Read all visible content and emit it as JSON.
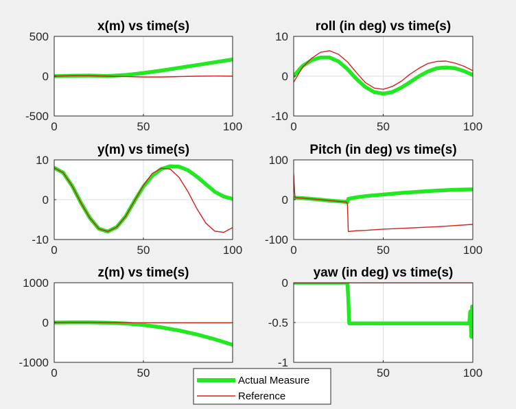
{
  "figure": {
    "background": "#f0f0f0"
  },
  "colors": {
    "actual": "#22e822",
    "reference": "#d81b1b"
  },
  "legend": {
    "actual_label": "Actual Measure",
    "reference_label": "Reference",
    "placement": "bottom-center"
  },
  "chart_data": [
    {
      "type": "line",
      "title": "x(m) vs time(s)",
      "xlim": [
        0,
        100
      ],
      "ylim": [
        -500,
        500
      ],
      "xticks": [
        0,
        50,
        100
      ],
      "xticklabels": [
        "0",
        "50",
        "100"
      ],
      "yticks": [
        -500,
        0,
        500
      ],
      "yticklabels": [
        "-500",
        "0",
        "500"
      ],
      "grid": true,
      "series": [
        {
          "name": "Actual Measure",
          "x": [
            0,
            10,
            20,
            30,
            40,
            50,
            60,
            70,
            80,
            90,
            100
          ],
          "y": [
            0,
            5,
            8,
            2,
            15,
            40,
            70,
            105,
            140,
            175,
            210
          ]
        },
        {
          "name": "Reference",
          "x": [
            0,
            10,
            20,
            30,
            40,
            50,
            60,
            70,
            80,
            90,
            100
          ],
          "y": [
            0,
            6,
            6,
            0,
            -5,
            -10,
            -10,
            -5,
            0,
            2,
            0
          ]
        }
      ]
    },
    {
      "type": "line",
      "title": "roll (in deg) vs time(s)",
      "xlim": [
        0,
        100
      ],
      "ylim": [
        -10,
        10
      ],
      "xticks": [
        0,
        50,
        100
      ],
      "xticklabels": [
        "0",
        "50",
        "100"
      ],
      "yticks": [
        -10,
        0,
        10
      ],
      "yticklabels": [
        "-10",
        "0",
        "10"
      ],
      "grid": true,
      "series": [
        {
          "name": "Actual Measure",
          "x": [
            0,
            5,
            10,
            15,
            20,
            25,
            30,
            35,
            40,
            45,
            50,
            55,
            60,
            65,
            70,
            75,
            80,
            85,
            90,
            95,
            100
          ],
          "y": [
            0,
            2.6,
            4,
            4.7,
            4.7,
            3.7,
            1.8,
            -0.7,
            -2.7,
            -4,
            -4.4,
            -4,
            -2.9,
            -1.5,
            0,
            1.2,
            2,
            2.2,
            2,
            1.3,
            0.3
          ]
        },
        {
          "name": "Reference",
          "x": [
            0,
            5,
            10,
            15,
            20,
            25,
            30,
            35,
            40,
            45,
            50,
            55,
            60,
            65,
            70,
            75,
            80,
            85,
            90,
            95,
            100
          ],
          "y": [
            -1.5,
            2.3,
            4.5,
            6,
            6.4,
            5.5,
            3.6,
            0.9,
            -1.6,
            -3,
            -3.3,
            -2.6,
            -1.3,
            0.5,
            2,
            3.2,
            3.7,
            3.8,
            3.3,
            2.5,
            1.4
          ]
        }
      ]
    },
    {
      "type": "line",
      "title": "y(m) vs time(s)",
      "xlim": [
        0,
        100
      ],
      "ylim": [
        -10,
        10
      ],
      "xticks": [
        0,
        50,
        100
      ],
      "xticklabels": [
        "0",
        "50",
        "100"
      ],
      "yticks": [
        -10,
        0,
        10
      ],
      "yticklabels": [
        "-10",
        "0",
        "10"
      ],
      "grid": true,
      "series": [
        {
          "name": "Actual Measure",
          "x": [
            0,
            5,
            10,
            15,
            20,
            25,
            30,
            35,
            40,
            45,
            50,
            55,
            60,
            65,
            70,
            75,
            80,
            85,
            90,
            95,
            100
          ],
          "y": [
            8,
            6.8,
            3.5,
            -0.8,
            -4.6,
            -7.3,
            -8.0,
            -6.9,
            -4.2,
            -0.3,
            3.3,
            6.0,
            7.7,
            8.4,
            8.3,
            7.4,
            5.8,
            3.9,
            2.0,
            0.8,
            0.2
          ]
        },
        {
          "name": "Reference",
          "x": [
            0,
            5,
            10,
            15,
            20,
            25,
            30,
            35,
            40,
            45,
            50,
            55,
            60,
            65,
            70,
            75,
            80,
            85,
            90,
            95,
            100
          ],
          "y": [
            8,
            6.8,
            3.5,
            -0.8,
            -4.6,
            -7.3,
            -8.0,
            -6.9,
            -4.2,
            -0.3,
            3.6,
            6.6,
            7.9,
            7.7,
            5.6,
            2.0,
            -2.3,
            -5.9,
            -7.9,
            -8.2,
            -7.0
          ]
        }
      ]
    },
    {
      "type": "line",
      "title": "Pitch (in deg) vs time(s)",
      "xlim": [
        0,
        100
      ],
      "ylim": [
        -100,
        100
      ],
      "xticks": [
        0,
        50,
        100
      ],
      "xticklabels": [
        "0",
        "50",
        "100"
      ],
      "yticks": [
        -100,
        0,
        100
      ],
      "yticklabels": [
        "-100",
        "0",
        "100"
      ],
      "grid": true,
      "series": [
        {
          "name": "Actual Measure",
          "x": [
            0,
            5,
            10,
            15,
            20,
            25,
            30,
            30.5,
            35,
            40,
            50,
            60,
            70,
            80,
            90,
            100
          ],
          "y": [
            5,
            4,
            2,
            0,
            -2,
            -4,
            -6,
            2,
            6,
            9,
            13,
            17,
            20,
            23,
            25,
            26
          ]
        },
        {
          "name": "Reference",
          "x": [
            0,
            0.5,
            0.8,
            5,
            10,
            20,
            29.5,
            30,
            30.5,
            35,
            40,
            50,
            60,
            70,
            80,
            90,
            100
          ],
          "y": [
            65,
            20,
            5,
            4,
            2,
            -2,
            -6,
            -10,
            -80,
            -78,
            -77,
            -74,
            -72,
            -70,
            -68,
            -65,
            -62
          ]
        }
      ]
    },
    {
      "type": "line",
      "title": "z(m) vs time(s)",
      "xlim": [
        0,
        100
      ],
      "ylim": [
        -1000,
        1000
      ],
      "xticks": [
        0,
        50
      ],
      "xticklabels": [
        "0",
        "50"
      ],
      "yticks": [
        -1000,
        0,
        1000
      ],
      "yticklabels": [
        "-1000",
        "0",
        "1000"
      ],
      "grid": true,
      "series": [
        {
          "name": "Actual Measure",
          "x": [
            0,
            10,
            20,
            30,
            40,
            50,
            60,
            70,
            80,
            90,
            100
          ],
          "y": [
            0,
            5,
            5,
            -5,
            -25,
            -60,
            -120,
            -200,
            -300,
            -420,
            -560
          ]
        },
        {
          "name": "Reference",
          "x": [
            0,
            10,
            20,
            30,
            40,
            50,
            60,
            70,
            80,
            90,
            100
          ],
          "y": [
            0,
            4,
            4,
            0,
            -3,
            -5,
            -5,
            -5,
            -5,
            -5,
            -5
          ]
        }
      ]
    },
    {
      "type": "line",
      "title": "yaw (in deg) vs time(s)",
      "xlim": [
        0,
        100
      ],
      "ylim": [
        -1,
        0
      ],
      "xticks": [
        0,
        50,
        100
      ],
      "xticklabels": [
        "0",
        "50",
        "100"
      ],
      "yticks": [
        -1,
        -0.5,
        0
      ],
      "yticklabels": [
        "-1",
        "-0.5",
        "0"
      ],
      "grid": true,
      "series": [
        {
          "name": "Actual Measure",
          "x": [
            0,
            30,
            30.5,
            31,
            98,
            98.6,
            99.2,
            99.6,
            100
          ],
          "y": [
            0,
            0,
            -0.2,
            -0.51,
            -0.51,
            -0.36,
            -0.68,
            -0.3,
            -0.5
          ]
        },
        {
          "name": "Reference",
          "x": [
            0,
            100
          ],
          "y": [
            0,
            0
          ]
        }
      ]
    }
  ]
}
